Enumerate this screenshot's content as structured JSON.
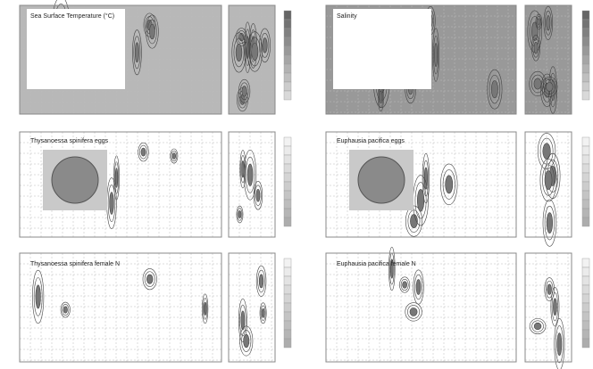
{
  "panels": [
    {
      "title": "Sea Surface Temperature (°C)"
    },
    {
      "title": "Salinity"
    },
    {
      "title": "Thysanoessa spinifera eggs"
    },
    {
      "title": "Euphausia pacifica eggs"
    },
    {
      "title": "Thysanoessa spinifera female N"
    },
    {
      "title": "Euphausia pacifica female N"
    }
  ]
}
